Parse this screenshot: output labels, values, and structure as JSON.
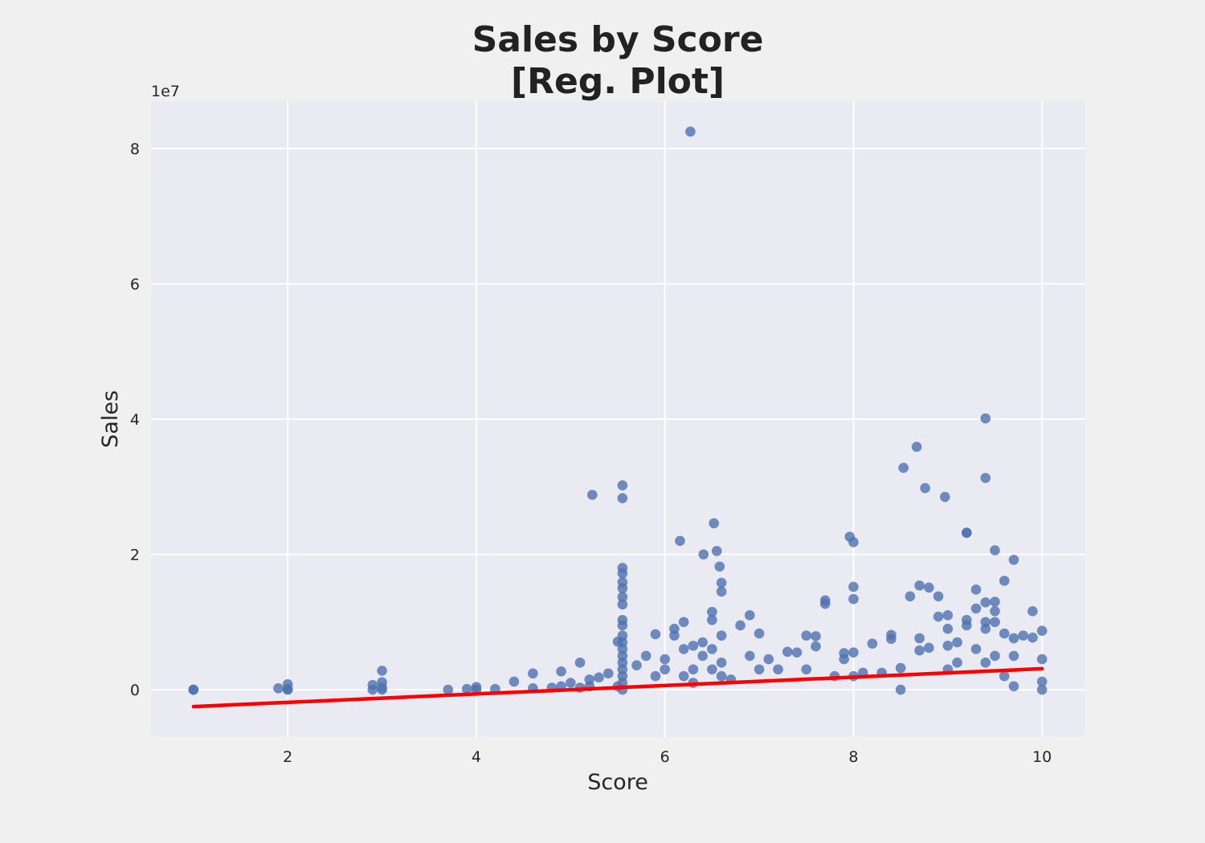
{
  "chart_data": {
    "type": "scatter",
    "title_lines": [
      "Sales by Score",
      "[Reg. Plot]"
    ],
    "xlabel": "Score",
    "ylabel": "Sales",
    "y_offset_label": "1e7",
    "xlim": [
      0.55,
      10.45
    ],
    "ylim": [
      -7000000,
      87000000
    ],
    "xticks": [
      2,
      4,
      6,
      8,
      10
    ],
    "xtick_labels": [
      "2",
      "4",
      "6",
      "8",
      "10"
    ],
    "yticks": [
      0,
      20000000,
      40000000,
      60000000,
      80000000
    ],
    "ytick_labels": [
      "0",
      "2",
      "4",
      "6",
      "8"
    ],
    "grid": true,
    "colors": {
      "background": "#f0f0f0",
      "plot_background": "#eaeaf2",
      "grid": "#ffffff",
      "points": "#4c72b0",
      "regression_line": "#ff0000"
    },
    "series": [
      {
        "name": "",
        "kind": "points",
        "x": [
          1.0,
          1.0,
          1.9,
          2.0,
          2.0,
          2.0,
          2.9,
          2.9,
          3.0,
          3.0,
          3.0,
          3.0,
          3.7,
          3.9,
          4.0,
          4.0,
          4.2,
          4.4,
          4.6,
          4.6,
          4.8,
          4.9,
          4.9,
          5.0,
          5.1,
          5.1,
          5.2,
          5.2,
          5.3,
          5.4,
          5.5,
          5.5,
          5.55,
          5.55,
          5.55,
          5.55,
          5.55,
          5.55,
          5.55,
          5.55,
          5.55,
          5.55,
          5.55,
          5.55,
          5.55,
          5.55,
          5.55,
          5.55,
          5.55,
          5.55,
          5.7,
          5.8,
          5.9,
          5.9,
          6.0,
          6.0,
          6.1,
          6.1,
          6.2,
          6.2,
          6.2,
          6.3,
          6.3,
          6.3,
          6.4,
          6.4,
          6.5,
          6.5,
          6.5,
          6.5,
          6.6,
          6.6,
          6.6,
          6.6,
          6.6,
          6.7,
          6.8,
          6.9,
          6.9,
          7.0,
          7.0,
          7.1,
          7.2,
          7.3,
          7.4,
          7.5,
          7.5,
          7.6,
          7.6,
          7.7,
          7.7,
          7.8,
          7.9,
          7.9,
          8.0,
          8.0,
          8.0,
          8.0,
          8.1,
          8.2,
          8.3,
          8.4,
          8.4,
          8.5,
          8.5,
          8.6,
          8.7,
          8.7,
          8.7,
          8.8,
          8.8,
          8.9,
          8.9,
          9.0,
          9.0,
          9.0,
          9.0,
          9.1,
          9.1,
          9.2,
          9.2,
          9.2,
          9.3,
          9.3,
          9.3,
          9.4,
          9.4,
          9.4,
          9.4,
          9.5,
          9.5,
          9.5,
          9.5,
          9.6,
          9.6,
          9.6,
          9.7,
          9.7,
          9.7,
          9.8,
          9.9,
          9.9,
          10.0,
          10.0,
          10.0,
          10.0,
          6.27,
          9.4,
          8.67,
          8.53,
          9.4,
          8.76,
          8.97,
          5.23,
          5.55,
          6.52,
          7.96,
          8.0,
          6.16,
          6.41,
          9.2,
          9.5,
          9.7,
          6.55,
          6.58
        ],
        "y": [
          0,
          0,
          200000,
          0,
          100000,
          800000,
          0,
          700000,
          0,
          300000,
          1100000,
          2800000,
          0,
          100000,
          0,
          400000,
          100000,
          1200000,
          200000,
          2400000,
          300000,
          500000,
          2700000,
          1000000,
          300000,
          4000000,
          500000,
          1500000,
          1800000,
          2400000,
          7100000,
          500000,
          0,
          1000000,
          2000000,
          3000000,
          4000000,
          5000000,
          6000000,
          7000000,
          8000000,
          9500000,
          10300000,
          12600000,
          13700000,
          15000000,
          15900000,
          17200000,
          18000000,
          28300000,
          3600000,
          5000000,
          2000000,
          8200000,
          3000000,
          4500000,
          8000000,
          9000000,
          6000000,
          10000000,
          2000000,
          3000000,
          6500000,
          1000000,
          5000000,
          7000000,
          3000000,
          10300000,
          11500000,
          6000000,
          2000000,
          4000000,
          8000000,
          14500000,
          15800000,
          1500000,
          9500000,
          5000000,
          11000000,
          3000000,
          8300000,
          4500000,
          3000000,
          5600000,
          5500000,
          3000000,
          8000000,
          6400000,
          7900000,
          12700000,
          13200000,
          2000000,
          4500000,
          5400000,
          2000000,
          5500000,
          13400000,
          15200000,
          2500000,
          6800000,
          2500000,
          7500000,
          8100000,
          0,
          3200000,
          13800000,
          5800000,
          7600000,
          15400000,
          6200000,
          15100000,
          10800000,
          13800000,
          3000000,
          6500000,
          9000000,
          11000000,
          4000000,
          7000000,
          9500000,
          10300000,
          23200000,
          6000000,
          12000000,
          14800000,
          4000000,
          9000000,
          12900000,
          10000000,
          5000000,
          10000000,
          11600000,
          13000000,
          2000000,
          8300000,
          16100000,
          500000,
          5000000,
          7600000,
          8000000,
          7700000,
          11600000,
          0,
          1200000,
          4500000,
          8700000,
          82500000,
          40100000,
          35900000,
          32800000,
          31300000,
          29800000,
          28500000,
          28800000,
          30200000,
          24600000,
          22600000,
          21800000,
          22000000,
          20000000,
          23200000,
          20600000,
          19200000,
          20500000,
          18200000
        ]
      },
      {
        "name": "",
        "kind": "line",
        "x": [
          1.0,
          10.0
        ],
        "y": [
          -2500000,
          3100000
        ]
      }
    ]
  }
}
